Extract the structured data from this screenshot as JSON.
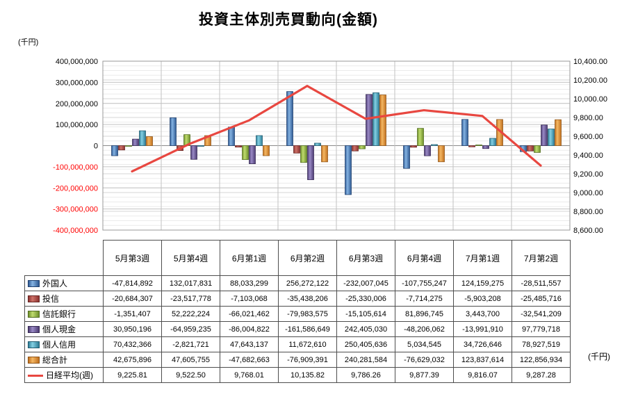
{
  "title": "投資主体別売買動向(金額)",
  "left_unit_label": "(千円)",
  "right_unit_label": "(千円)",
  "chart_data": {
    "type": "combo-bar-line",
    "categories": [
      "5月第3週",
      "5月第4週",
      "6月第1週",
      "6月第2週",
      "6月第3週",
      "6月第4週",
      "7月第1週",
      "7月第2週"
    ],
    "bar_series": [
      {
        "name": "外国人",
        "values": [
          -47814892,
          132017831,
          88033299,
          256272122,
          -232007045,
          -107755247,
          124159275,
          -28511557
        ],
        "color_light": "#85B3E2",
        "color_dark": "#2F5A93",
        "border": "#1F3F6E"
      },
      {
        "name": "投信",
        "values": [
          -20684307,
          -23517778,
          -7103068,
          -35438206,
          -25330006,
          -7714275,
          -5903208,
          -25485716
        ],
        "color_light": "#CE7168",
        "color_dark": "#8C3330",
        "border": "#672523"
      },
      {
        "name": "信託銀行",
        "values": [
          -1351407,
          52222224,
          -66021462,
          -79983575,
          -15105614,
          81896745,
          3443700,
          -32541209
        ],
        "color_light": "#BFDB6E",
        "color_dark": "#6E8F2B",
        "border": "#516B1E"
      },
      {
        "name": "個人現金",
        "values": [
          30950196,
          -64959235,
          -86004822,
          -161586649,
          242405030,
          -48206062,
          -13991910,
          97779718
        ],
        "color_light": "#9A8AC6",
        "color_dark": "#4D3C73",
        "border": "#382B55"
      },
      {
        "name": "個人信用",
        "values": [
          70432366,
          -2821721,
          47643137,
          11672610,
          250405636,
          5034545,
          34726646,
          78927519
        ],
        "color_light": "#84D0E3",
        "color_dark": "#2E7D96",
        "border": "#1F5A6E"
      },
      {
        "name": "総合計",
        "values": [
          42675896,
          47605755,
          -47682663,
          -76909391,
          240281584,
          -76629032,
          123837614,
          122856934
        ],
        "color_light": "#F4B763",
        "color_dark": "#C06F1E",
        "border": "#8F5416"
      }
    ],
    "line_series": {
      "name": "日経平均(週)",
      "values": [
        9225.81,
        9522.5,
        9768.01,
        10135.82,
        9786.26,
        9877.39,
        9816.07,
        9287.28
      ],
      "color": "#E84740"
    },
    "left_axis": {
      "min": -400000000,
      "max": 400000000,
      "major": 100000000,
      "ticks": [
        "400,000,000",
        "300,000,000",
        "200,000,000",
        "100,000,000",
        "0",
        "-100,000,000",
        "-200,000,000",
        "-300,000,000",
        "-400,000,000"
      ],
      "negative_tick_color": "#FF0000"
    },
    "right_axis": {
      "min": 8600,
      "max": 10400,
      "major": 200,
      "minor": 50,
      "ticks": [
        "10,400.00",
        "10,200.00",
        "10,000.00",
        "9,800.00",
        "9,600.00",
        "9,400.00",
        "9,200.00",
        "9,000.00",
        "8,800.00",
        "8,600.00"
      ]
    },
    "grid": true,
    "legend_position": "data-table-left"
  }
}
